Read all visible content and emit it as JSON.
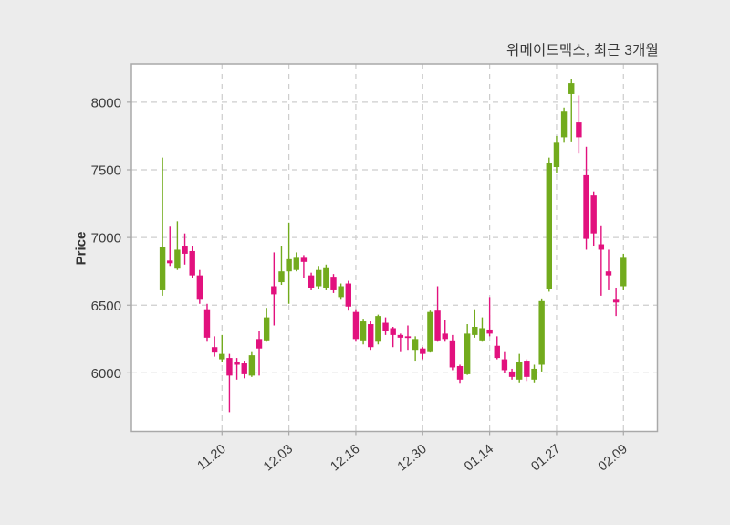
{
  "chart_data": {
    "type": "candlestick",
    "title": "위메이드맥스, 최근 3개월",
    "ylabel": "Price",
    "legend": null,
    "grid": "dashed",
    "colors": {
      "up": "#72ab1d",
      "down": "#e2117e",
      "grid": "#cdcdcd",
      "spine": "#a9a9a9",
      "text": "#3c3c3c",
      "plot_background": "#ffffff",
      "figure_background": "#ececec"
    },
    "y_ticks": [
      6000,
      6500,
      7000,
      7500,
      8000
    ],
    "y_tick_labels": [
      "6000",
      "6500",
      "7000",
      "7500",
      "8000"
    ],
    "ylim": [
      5570,
      8280
    ],
    "x_tick_indices": [
      8,
      17,
      26,
      35,
      44,
      53,
      62
    ],
    "x_tick_labels": [
      "11.20",
      "12.03",
      "12.16",
      "12.30",
      "01.14",
      "01.27",
      "02.09"
    ],
    "xlim_indices": [
      -4.2,
      66.5
    ],
    "candles_format": [
      "open",
      "high",
      "low",
      "close"
    ],
    "candles": [
      [
        6610,
        7590,
        6570,
        6930
      ],
      [
        6830,
        7080,
        6790,
        6810
      ],
      [
        6770,
        7120,
        6760,
        6910
      ],
      [
        6940,
        7030,
        6800,
        6880
      ],
      [
        6900,
        6940,
        6700,
        6720
      ],
      [
        6720,
        6760,
        6510,
        6540
      ],
      [
        6470,
        6510,
        6230,
        6260
      ],
      [
        6190,
        6270,
        6120,
        6150
      ],
      [
        6100,
        6280,
        6080,
        6140
      ],
      [
        6110,
        6140,
        5710,
        5980
      ],
      [
        6080,
        6110,
        5950,
        6060
      ],
      [
        6070,
        6090,
        5960,
        5990
      ],
      [
        5980,
        6160,
        5970,
        6130
      ],
      [
        6250,
        6310,
        5980,
        6180
      ],
      [
        6240,
        6480,
        6230,
        6410
      ],
      [
        6640,
        6890,
        6350,
        6580
      ],
      [
        6670,
        6940,
        6650,
        6750
      ],
      [
        6750,
        7110,
        6510,
        6840
      ],
      [
        6760,
        6890,
        6750,
        6850
      ],
      [
        6850,
        6870,
        6700,
        6820
      ],
      [
        6720,
        6740,
        6610,
        6630
      ],
      [
        6640,
        6790,
        6620,
        6760
      ],
      [
        6630,
        6800,
        6610,
        6780
      ],
      [
        6710,
        6730,
        6590,
        6610
      ],
      [
        6560,
        6660,
        6540,
        6640
      ],
      [
        6660,
        6680,
        6460,
        6490
      ],
      [
        6450,
        6470,
        6230,
        6250
      ],
      [
        6240,
        6400,
        6210,
        6380
      ],
      [
        6360,
        6380,
        6170,
        6190
      ],
      [
        6230,
        6430,
        6210,
        6420
      ],
      [
        6370,
        6410,
        6280,
        6310
      ],
      [
        6330,
        6340,
        6190,
        6280
      ],
      [
        6280,
        6290,
        6160,
        6260
      ],
      [
        6270,
        6350,
        6170,
        6260
      ],
      [
        6170,
        6270,
        6090,
        6250
      ],
      [
        6180,
        6190,
        6100,
        6140
      ],
      [
        6160,
        6460,
        6150,
        6450
      ],
      [
        6460,
        6640,
        6230,
        6240
      ],
      [
        6290,
        6390,
        6230,
        6250
      ],
      [
        6240,
        6280,
        6020,
        6040
      ],
      [
        6050,
        6060,
        5920,
        5950
      ],
      [
        5990,
        6360,
        5985,
        6290
      ],
      [
        6280,
        6470,
        6260,
        6340
      ],
      [
        6240,
        6410,
        6230,
        6330
      ],
      [
        6320,
        6560,
        6270,
        6290
      ],
      [
        6200,
        6270,
        6100,
        6110
      ],
      [
        6100,
        6160,
        6000,
        6020
      ],
      [
        6010,
        6030,
        5950,
        5970
      ],
      [
        5950,
        6140,
        5930,
        6080
      ],
      [
        6090,
        6100,
        5940,
        5970
      ],
      [
        5950,
        6060,
        5930,
        6030
      ],
      [
        6060,
        6550,
        6010,
        6530
      ],
      [
        6620,
        7590,
        6600,
        7550
      ],
      [
        7520,
        7750,
        7480,
        7700
      ],
      [
        7740,
        7960,
        7700,
        7930
      ],
      [
        8060,
        8170,
        7710,
        8140
      ],
      [
        7850,
        8050,
        7620,
        7740
      ],
      [
        7460,
        7670,
        6910,
        6990
      ],
      [
        7310,
        7340,
        6940,
        7030
      ],
      [
        6950,
        7090,
        6570,
        6910
      ],
      [
        6750,
        6910,
        6610,
        6720
      ],
      [
        6540,
        6630,
        6420,
        6520
      ],
      [
        6640,
        6880,
        6610,
        6850
      ]
    ]
  }
}
